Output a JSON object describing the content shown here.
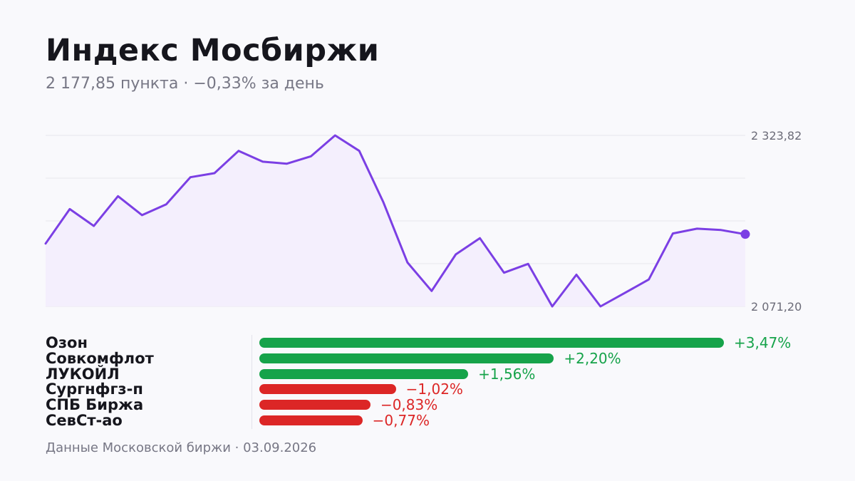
{
  "header": {
    "title": "Индекс Мосбиржи",
    "subtitle": "2 177,85 пункта · −0,33% за день"
  },
  "chart_data": [
    {
      "type": "line",
      "y_tick_labels": [
        "2 323,82",
        "2 071,20"
      ],
      "ylim": [
        2071.2,
        2323.82
      ],
      "grid": true,
      "colors": {
        "line": "#7b3fe4",
        "fill": "#f4effd",
        "endpoint": "#7b3fe4"
      },
      "values": [
        2164,
        2215,
        2190,
        2234,
        2206,
        2222,
        2262,
        2268,
        2301,
        2285,
        2282,
        2293,
        2323.82,
        2301,
        2225,
        2136,
        2094,
        2148,
        2172,
        2121,
        2134,
        2071.2,
        2118,
        2071.2,
        2091,
        2111,
        2179,
        2186,
        2184,
        2177.85
      ]
    },
    {
      "type": "bar",
      "orientation": "horizontal",
      "categories": [
        "Озон",
        "Совкомфлот",
        "ЛУКОЙЛ",
        "Сургнфгз-п",
        "СПБ Биржа",
        "СевСт-ао"
      ],
      "values": [
        3.47,
        2.2,
        1.56,
        -1.02,
        -0.83,
        -0.77
      ],
      "value_labels": [
        "+3,47%",
        "+2,20%",
        "+1,56%",
        "−1,02%",
        "−0,83%",
        "−0,77%"
      ],
      "colors": {
        "positive": "#16a34a",
        "negative": "#dc2626"
      }
    }
  ],
  "footer": {
    "text": "Данные Московской биржи · 03.09.2026"
  }
}
